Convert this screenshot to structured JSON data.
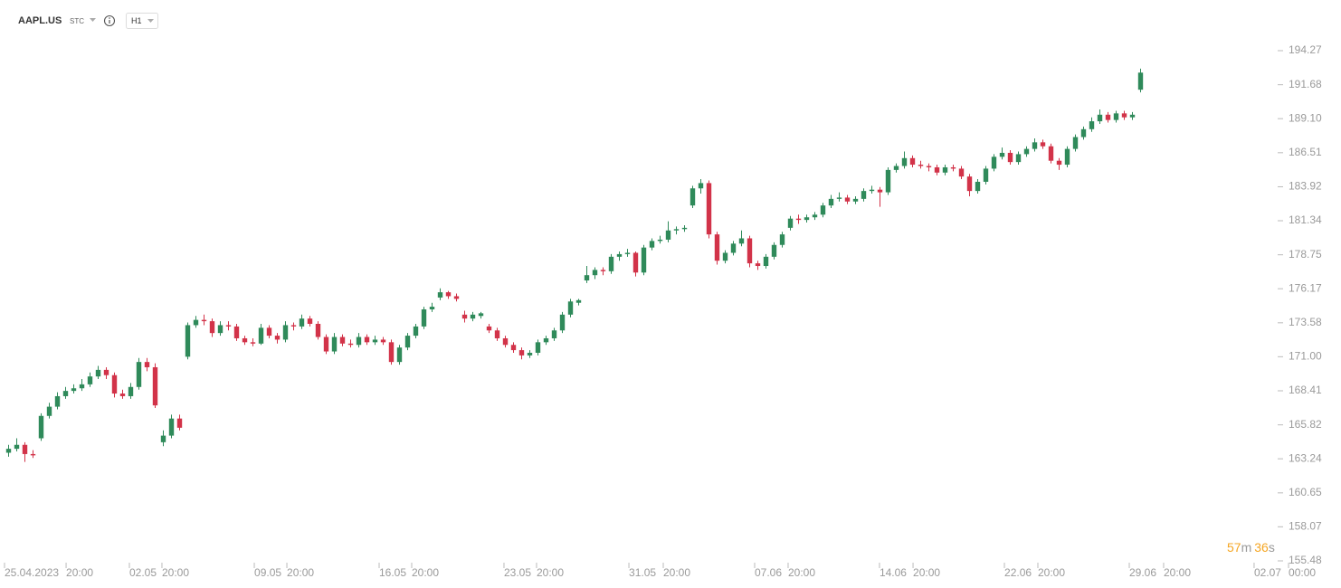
{
  "chart_data": {
    "type": "candlestick",
    "symbol": "AAPL.US",
    "exchange": "STC",
    "interval": "H1",
    "up_color": "#2f8a5a",
    "down_color": "#d23349",
    "xlim": [
      0,
      162
    ],
    "ylim": [
      155.48,
      195.37
    ],
    "yticks": [
      194.27,
      191.68,
      {
        "value": 189.1,
        "label": "189.10"
      },
      186.51,
      183.92,
      181.34,
      178.75,
      176.17,
      173.58,
      {
        "value": 171,
        "label": "171.00"
      },
      168.41,
      165.82,
      163.24,
      160.65,
      158.07,
      155.48
    ],
    "xticks": [
      {
        "value": 0,
        "label": "25.04.2023"
      },
      {
        "value": 7.56,
        "label": "20:00"
      },
      {
        "value": 15.33,
        "label": "02.05"
      },
      {
        "value": 19.33,
        "label": "20:00"
      },
      {
        "value": 30.67,
        "label": "09.05"
      },
      {
        "value": 34.67,
        "label": "20:00"
      },
      {
        "value": 46,
        "label": "16.05"
      },
      {
        "value": 50,
        "label": "20:00"
      },
      {
        "value": 61.33,
        "label": "23.05"
      },
      {
        "value": 65.33,
        "label": "20:00"
      },
      {
        "value": 76.67,
        "label": "31.05"
      },
      {
        "value": 80.89,
        "label": "20:00"
      },
      {
        "value": 92.11,
        "label": "07.06"
      },
      {
        "value": 96.22,
        "label": "20:00"
      },
      {
        "value": 107.44,
        "label": "14.06"
      },
      {
        "value": 111.56,
        "label": "20:00"
      },
      {
        "value": 122.78,
        "label": "22.06"
      },
      {
        "value": 126.89,
        "label": "20:00"
      },
      {
        "value": 138.11,
        "label": "29.06"
      },
      {
        "value": 142.33,
        "label": "20:00"
      },
      {
        "value": 153.44,
        "label": "02.07"
      },
      {
        "value": 157.67,
        "label": "00:00"
      }
    ],
    "countdown": {
      "minutes": 57,
      "minutes_unit": "m",
      "seconds": 36,
      "seconds_unit": "s"
    },
    "candles": [
      [
        163.7,
        164.3,
        163.4,
        164.0
      ],
      [
        164.0,
        164.8,
        163.8,
        164.3
      ],
      [
        164.3,
        164.5,
        163.0,
        163.6
      ],
      [
        163.6,
        163.9,
        163.3,
        163.5
      ],
      [
        164.8,
        166.7,
        164.6,
        166.5
      ],
      [
        166.5,
        167.5,
        166.3,
        167.2
      ],
      [
        167.2,
        168.3,
        167.0,
        168.0
      ],
      [
        168.0,
        168.7,
        167.8,
        168.4
      ],
      [
        168.4,
        168.9,
        168.2,
        168.6
      ],
      [
        168.6,
        169.3,
        168.4,
        168.9
      ],
      [
        168.9,
        169.8,
        168.7,
        169.5
      ],
      [
        169.5,
        170.3,
        169.3,
        170.0
      ],
      [
        170.0,
        170.2,
        169.3,
        169.6
      ],
      [
        169.6,
        169.8,
        167.9,
        168.2
      ],
      [
        168.2,
        168.5,
        167.8,
        168.0
      ],
      [
        168.0,
        169.0,
        167.8,
        168.7
      ],
      [
        168.7,
        170.9,
        168.5,
        170.6
      ],
      [
        170.6,
        170.9,
        169.9,
        170.2
      ],
      [
        170.2,
        170.5,
        167.1,
        167.3
      ],
      [
        164.5,
        165.4,
        164.2,
        165.0
      ],
      [
        165.0,
        166.6,
        164.8,
        166.3
      ],
      [
        166.3,
        166.6,
        165.4,
        165.6
      ],
      [
        171.0,
        173.6,
        170.8,
        173.4
      ],
      [
        173.4,
        174.1,
        173.2,
        173.8
      ],
      [
        173.8,
        174.2,
        173.4,
        173.7
      ],
      [
        173.7,
        173.9,
        172.5,
        172.8
      ],
      [
        172.8,
        173.7,
        172.6,
        173.4
      ],
      [
        173.4,
        173.7,
        173.0,
        173.3
      ],
      [
        173.3,
        173.5,
        172.2,
        172.4
      ],
      [
        172.4,
        172.6,
        171.9,
        172.1
      ],
      [
        172.1,
        172.4,
        171.8,
        172.0
      ],
      [
        172.0,
        173.5,
        171.9,
        173.2
      ],
      [
        173.2,
        173.4,
        172.4,
        172.6
      ],
      [
        172.6,
        172.8,
        172.0,
        172.3
      ],
      [
        172.3,
        173.7,
        172.1,
        173.4
      ],
      [
        173.4,
        173.6,
        173.0,
        173.3
      ],
      [
        173.3,
        174.2,
        173.1,
        173.9
      ],
      [
        173.9,
        174.1,
        173.3,
        173.5
      ],
      [
        173.5,
        173.7,
        172.3,
        172.5
      ],
      [
        172.5,
        172.7,
        171.2,
        171.4
      ],
      [
        171.4,
        172.8,
        171.2,
        172.5
      ],
      [
        172.5,
        172.7,
        171.8,
        172.0
      ],
      [
        172.0,
        172.3,
        171.7,
        171.9
      ],
      [
        171.9,
        172.8,
        171.7,
        172.5
      ],
      [
        172.5,
        172.7,
        171.9,
        172.1
      ],
      [
        172.1,
        172.6,
        171.9,
        172.3
      ],
      [
        172.3,
        172.5,
        171.9,
        172.1
      ],
      [
        172.1,
        172.3,
        170.4,
        170.6
      ],
      [
        170.6,
        171.9,
        170.4,
        171.7
      ],
      [
        171.7,
        172.8,
        171.5,
        172.6
      ],
      [
        172.6,
        173.5,
        172.4,
        173.3
      ],
      [
        173.3,
        174.8,
        173.1,
        174.6
      ],
      [
        174.6,
        175.1,
        174.4,
        174.8
      ],
      [
        175.5,
        176.2,
        175.3,
        175.9
      ],
      [
        175.9,
        176.0,
        175.4,
        175.6
      ],
      [
        175.6,
        175.8,
        175.2,
        175.4
      ],
      [
        174.2,
        174.5,
        173.6,
        173.9
      ],
      [
        173.9,
        174.4,
        173.7,
        174.2
      ],
      [
        174.1,
        174.4,
        173.9,
        174.3
      ],
      [
        173.3,
        173.5,
        172.8,
        173.0
      ],
      [
        173.0,
        173.2,
        172.2,
        172.4
      ],
      [
        172.4,
        172.6,
        171.7,
        171.9
      ],
      [
        171.9,
        172.1,
        171.3,
        171.5
      ],
      [
        171.5,
        171.7,
        170.8,
        171.1
      ],
      [
        171.1,
        171.5,
        170.9,
        171.3
      ],
      [
        171.3,
        172.3,
        171.1,
        172.1
      ],
      [
        172.1,
        172.6,
        171.9,
        172.4
      ],
      [
        172.4,
        173.2,
        172.2,
        173.0
      ],
      [
        173.0,
        174.4,
        172.8,
        174.2
      ],
      [
        174.2,
        175.4,
        174.0,
        175.2
      ],
      [
        175.1,
        175.4,
        174.9,
        175.3
      ],
      [
        176.8,
        177.9,
        176.6,
        177.2
      ],
      [
        177.2,
        177.8,
        176.9,
        177.6
      ],
      [
        177.6,
        177.8,
        177.2,
        177.5
      ],
      [
        177.5,
        178.8,
        177.3,
        178.6
      ],
      [
        178.6,
        179.0,
        178.3,
        178.8
      ],
      [
        178.8,
        179.2,
        178.6,
        178.9
      ],
      [
        178.9,
        179.0,
        177.1,
        177.4
      ],
      [
        177.4,
        179.5,
        177.2,
        179.3
      ],
      [
        179.3,
        180.0,
        179.1,
        179.8
      ],
      [
        179.8,
        180.2,
        179.6,
        179.9
      ],
      [
        179.9,
        181.3,
        179.7,
        180.6
      ],
      [
        180.6,
        180.9,
        180.3,
        180.7
      ],
      [
        180.7,
        181.0,
        180.5,
        180.8
      ],
      [
        182.5,
        184.0,
        182.3,
        183.8
      ],
      [
        183.8,
        184.5,
        183.4,
        184.2
      ],
      [
        184.2,
        184.4,
        180.0,
        180.3
      ],
      [
        180.3,
        180.5,
        178.0,
        178.3
      ],
      [
        178.3,
        179.1,
        178.1,
        178.9
      ],
      [
        178.9,
        179.8,
        178.7,
        179.6
      ],
      [
        179.6,
        180.6,
        179.4,
        180.0
      ],
      [
        180.0,
        180.2,
        177.8,
        178.1
      ],
      [
        178.1,
        178.3,
        177.6,
        177.9
      ],
      [
        177.9,
        178.8,
        177.7,
        178.6
      ],
      [
        178.6,
        179.7,
        178.4,
        179.5
      ],
      [
        179.5,
        180.5,
        179.3,
        180.3
      ],
      [
        180.8,
        181.7,
        180.6,
        181.5
      ],
      [
        181.5,
        181.8,
        181.1,
        181.4
      ],
      [
        181.4,
        181.8,
        181.2,
        181.6
      ],
      [
        181.6,
        182.0,
        181.4,
        181.8
      ],
      [
        181.8,
        182.7,
        181.6,
        182.5
      ],
      [
        182.5,
        183.3,
        182.3,
        183.0
      ],
      [
        183.0,
        183.5,
        182.8,
        183.1
      ],
      [
        183.1,
        183.3,
        182.6,
        182.8
      ],
      [
        182.8,
        183.2,
        182.6,
        183.0
      ],
      [
        183.0,
        183.8,
        182.8,
        183.6
      ],
      [
        183.6,
        184.0,
        183.4,
        183.7
      ],
      [
        183.7,
        183.9,
        182.4,
        183.5
      ],
      [
        183.5,
        185.4,
        183.3,
        185.2
      ],
      [
        185.2,
        185.7,
        185.0,
        185.5
      ],
      [
        185.5,
        186.6,
        185.3,
        186.1
      ],
      [
        186.1,
        186.3,
        185.4,
        185.6
      ],
      [
        185.6,
        185.9,
        185.3,
        185.5
      ],
      [
        185.5,
        185.7,
        185.1,
        185.4
      ],
      [
        185.4,
        185.6,
        184.8,
        185.0
      ],
      [
        185.0,
        185.6,
        184.8,
        185.4
      ],
      [
        185.4,
        185.6,
        185.1,
        185.3
      ],
      [
        185.3,
        185.5,
        184.5,
        184.7
      ],
      [
        184.7,
        184.9,
        183.2,
        183.6
      ],
      [
        183.6,
        184.5,
        183.4,
        184.3
      ],
      [
        184.3,
        185.5,
        184.1,
        185.3
      ],
      [
        185.3,
        186.4,
        185.1,
        186.2
      ],
      [
        186.2,
        186.9,
        186.0,
        186.5
      ],
      [
        186.5,
        186.7,
        185.6,
        185.8
      ],
      [
        185.8,
        186.6,
        185.6,
        186.4
      ],
      [
        186.4,
        187.0,
        186.2,
        186.8
      ],
      [
        186.8,
        187.6,
        186.6,
        187.3
      ],
      [
        187.3,
        187.5,
        186.8,
        187.0
      ],
      [
        187.0,
        187.2,
        185.7,
        185.9
      ],
      [
        185.9,
        186.1,
        185.2,
        185.6
      ],
      [
        185.6,
        187.0,
        185.4,
        186.8
      ],
      [
        186.8,
        187.9,
        186.6,
        187.7
      ],
      [
        187.7,
        188.5,
        187.5,
        188.3
      ],
      [
        188.3,
        189.2,
        188.1,
        188.9
      ],
      [
        188.9,
        189.8,
        188.7,
        189.4
      ],
      [
        189.4,
        189.6,
        188.8,
        189.0
      ],
      [
        189.0,
        189.7,
        188.8,
        189.5
      ],
      [
        189.5,
        189.7,
        189.0,
        189.2
      ],
      [
        189.2,
        189.6,
        189.0,
        189.4
      ],
      [
        191.3,
        192.9,
        191.1,
        192.6
      ]
    ]
  }
}
